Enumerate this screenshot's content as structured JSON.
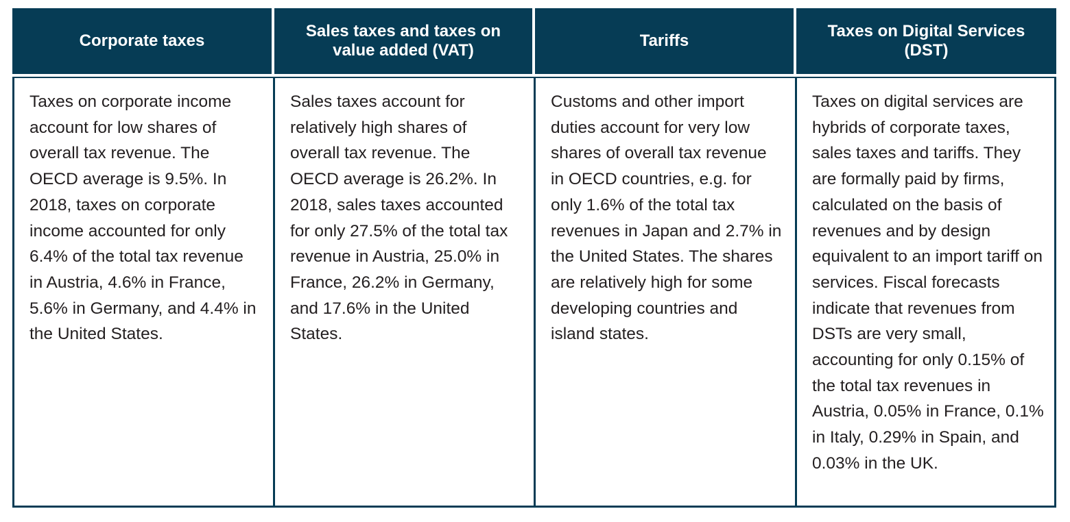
{
  "table": {
    "columns": [
      {
        "header": "Corporate taxes",
        "body": "Taxes on corporate income account for low shares of overall tax revenue. The OECD average is 9.5%. In 2018, taxes on corporate income accounted for only 6.4% of the total tax revenue in Austria, 4.6% in France, 5.6% in Germany, and 4.4% in the United States."
      },
      {
        "header": "Sales taxes and taxes on value added (VAT)",
        "body": "Sales taxes account for relatively high shares of overall tax revenue. The OECD average is 26.2%. In 2018, sales taxes accounted for only 27.5% of the total tax revenue in Austria, 25.0% in France, 26.2% in Germany, and 17.6% in the United States."
      },
      {
        "header": "Tariffs",
        "body": "Customs and other import duties account for very low shares of overall tax revenue in OECD count­ries, e.g. for only 1.6% of the total tax revenues in Japan and 2.7% in the United States. The shares are relatively high for some developing count­ries and island states."
      },
      {
        "header": "Taxes on Digital Services (DST)",
        "body": "Taxes on digital services are hybrids of corporate taxes, sales taxes and tariffs. They are formally paid by firms, calculated on the basis of revenues and by design equivalent to an import tariff on services. Fiscal forecasts indicate that revenues from DSTs are very small, accounting for only 0.15% of the total tax revenues in Austria, 0.05% in France, 0.1% in Italy, 0.29% in Spain, and 0.03% in the UK."
      }
    ],
    "colors": {
      "header_bg": "#063c55",
      "header_text": "#ffffff",
      "body_text": "#231f20",
      "border": "#063c55"
    }
  }
}
